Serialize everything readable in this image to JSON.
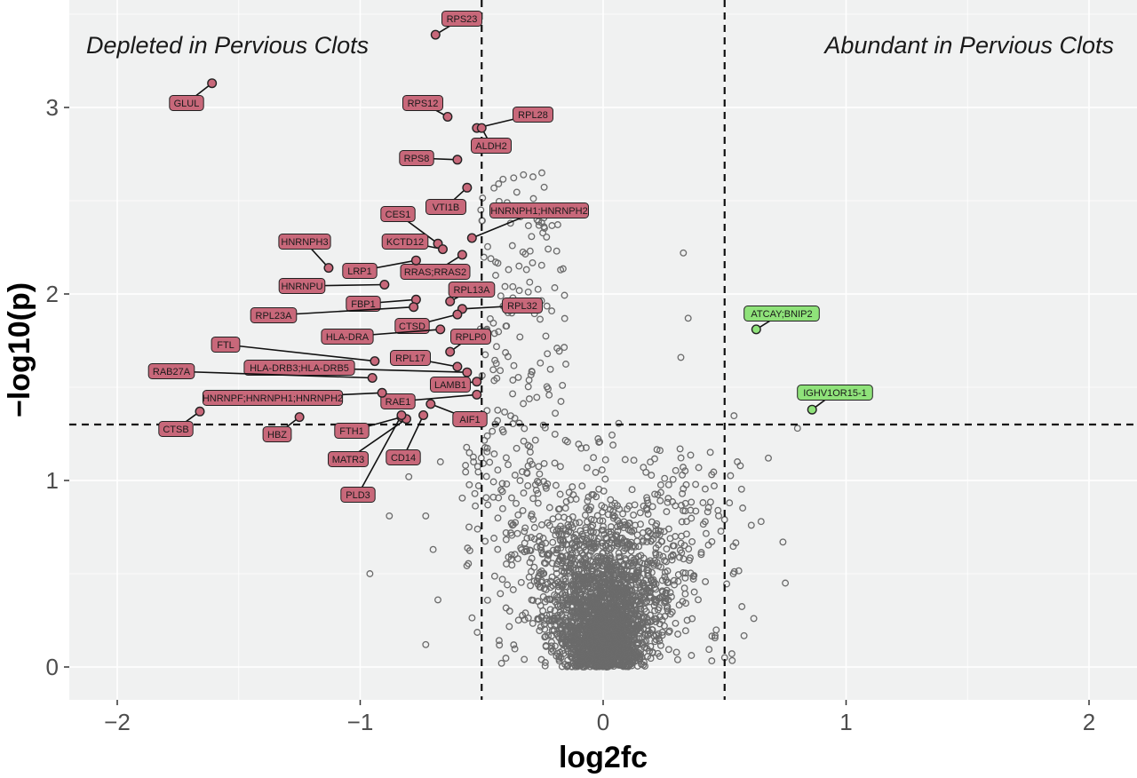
{
  "chart_data": {
    "type": "scatter",
    "title": "",
    "xlabel": "log2fc",
    "ylabel": "−log10(p)",
    "xlim": [
      -2.2,
      2.2
    ],
    "ylim": [
      -0.17,
      3.55
    ],
    "x_ticks": [
      -2,
      -1,
      0,
      1,
      2
    ],
    "x_tick_labels": [
      "−2",
      "−1",
      "0",
      "1",
      "2"
    ],
    "y_ticks": [
      0,
      1,
      2,
      3
    ],
    "y_tick_labels": [
      "0",
      "1",
      "2",
      "3"
    ],
    "grid": true,
    "thresholds": {
      "log2fc": [
        -0.5,
        0.5
      ],
      "neg_log10_p": 1.3
    },
    "colors": {
      "panel": "#f0f1f1",
      "grid": "#ffffff",
      "depleted": "#c8687a",
      "abundant": "#8fe27a",
      "background_points": "#b5b5b5"
    },
    "annotations": {
      "depleted": "Depleted in Pervious Clots",
      "abundant": "Abundant in Pervious Clots"
    },
    "background_points_note": "several thousand non-significant proteins clustered around log2fc 0, -log10(p) 0-1.3, plus scattered points between log2fc -0.5 and 0.5 up to -log10(p) 2.7",
    "series": [
      {
        "group": "depleted",
        "points": [
          {
            "label": "RPS23",
            "x": -0.69,
            "y": 3.39
          },
          {
            "label": "GLUL",
            "x": -1.61,
            "y": 3.13
          },
          {
            "label": "RPS12",
            "x": -0.64,
            "y": 2.95
          },
          {
            "label": "RPL28",
            "x": -0.52,
            "y": 2.89
          },
          {
            "label": "ALDH2",
            "x": -0.5,
            "y": 2.89
          },
          {
            "label": "RPS8",
            "x": -0.6,
            "y": 2.72
          },
          {
            "label": "VTI1B",
            "x": -0.56,
            "y": 2.57
          },
          {
            "label": "HNRNPH1;HNRNPH2",
            "x": -0.54,
            "y": 2.3
          },
          {
            "label": "CES1",
            "x": -0.68,
            "y": 2.27
          },
          {
            "label": "KCTD12",
            "x": -0.66,
            "y": 2.24
          },
          {
            "label": "HNRNPH3",
            "x": -1.13,
            "y": 2.14
          },
          {
            "label": "LRP1",
            "x": -0.77,
            "y": 2.18
          },
          {
            "label": "RRAS;RRAS2",
            "x": -0.58,
            "y": 2.21
          },
          {
            "label": "HNRNPU",
            "x": -0.9,
            "y": 2.05
          },
          {
            "label": "FBP1",
            "x": -0.77,
            "y": 1.97
          },
          {
            "label": "RPL23A",
            "x": -0.78,
            "y": 1.93
          },
          {
            "label": "RPL13A",
            "x": -0.63,
            "y": 1.96
          },
          {
            "label": "RPL32",
            "x": -0.58,
            "y": 1.92
          },
          {
            "label": "CTSD",
            "x": -0.6,
            "y": 1.89
          },
          {
            "label": "HLA-DRA",
            "x": -0.67,
            "y": 1.81
          },
          {
            "label": "RPLP0",
            "x": -0.63,
            "y": 1.69
          },
          {
            "label": "FTL",
            "x": -0.94,
            "y": 1.64
          },
          {
            "label": "RPL17",
            "x": -0.6,
            "y": 1.61
          },
          {
            "label": "HLA-DRB3;HLA-DRB5",
            "x": -0.56,
            "y": 1.58
          },
          {
            "label": "RAB27A",
            "x": -0.95,
            "y": 1.55
          },
          {
            "label": "LAMB1",
            "x": -0.52,
            "y": 1.53
          },
          {
            "label": "HNRNPF;HNRNPH1;HNRNPH2",
            "x": -0.91,
            "y": 1.47
          },
          {
            "label": "RAE1",
            "x": -0.52,
            "y": 1.46
          },
          {
            "label": "AIF1",
            "x": -0.71,
            "y": 1.41
          },
          {
            "label": "CD14",
            "x": -0.74,
            "y": 1.35
          },
          {
            "label": "FTH1",
            "x": -0.83,
            "y": 1.34
          },
          {
            "label": "MATR3",
            "x": -0.81,
            "y": 1.33
          },
          {
            "label": "PLD3",
            "x": -0.83,
            "y": 1.35
          },
          {
            "label": "HBZ",
            "x": -1.25,
            "y": 1.34
          },
          {
            "label": "CTSB",
            "x": -1.66,
            "y": 1.37
          }
        ]
      },
      {
        "group": "abundant",
        "points": [
          {
            "label": "ATCAY;BNIP2",
            "x": 0.63,
            "y": 1.81
          },
          {
            "label": "IGHV1OR15-1",
            "x": 0.86,
            "y": 1.38
          }
        ]
      }
    ]
  }
}
